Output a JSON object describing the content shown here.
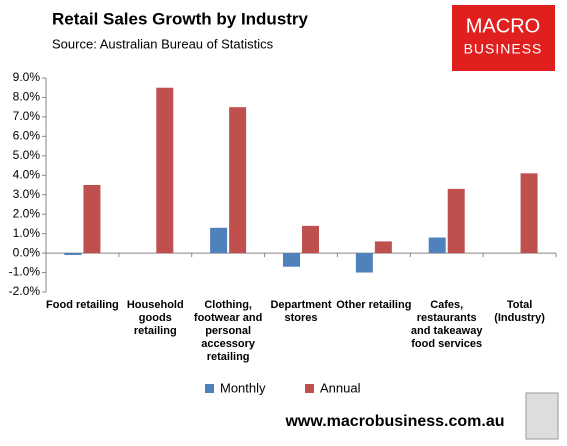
{
  "header": {
    "logo": [
      "MACRO",
      "BUSINESS"
    ],
    "footer": "www.macrobusiness.com.au"
  },
  "chart_data": {
    "type": "bar",
    "title": "Retail Sales Growth by Industry",
    "subtitle": "Source: Australian Bureau of Statistics",
    "categories": [
      "Food retailing",
      "Household goods retailing",
      "Clothing, footwear and personal accessory retailing",
      "Department stores",
      "Other retailing",
      "Cafes, restaurants and takeaway food services",
      "Total (Industry)"
    ],
    "series": [
      {
        "name": "Monthly",
        "color": "#4f81bd",
        "values": [
          -0.1,
          0.0,
          1.3,
          -0.7,
          -1.0,
          0.8,
          0.0
        ]
      },
      {
        "name": "Annual",
        "color": "#c0504d",
        "values": [
          3.5,
          8.5,
          7.5,
          1.4,
          0.6,
          3.3,
          4.1
        ]
      }
    ],
    "ylim": [
      -2,
      9
    ],
    "yticks": [
      {
        "value": -2,
        "label": "-2.0%"
      },
      {
        "value": -1,
        "label": "-1.0%"
      },
      {
        "value": 0,
        "label": "0.0%"
      },
      {
        "value": 1,
        "label": "1.0%"
      },
      {
        "value": 2,
        "label": "2.0%"
      },
      {
        "value": 3,
        "label": "3.0%"
      },
      {
        "value": 4,
        "label": "4.0%"
      },
      {
        "value": 5,
        "label": "5.0%"
      },
      {
        "value": 6,
        "label": "6.0%"
      },
      {
        "value": 7,
        "label": "7.0%"
      },
      {
        "value": 8,
        "label": "8.0%"
      },
      {
        "value": 9,
        "label": "9.0%"
      }
    ],
    "legend": "bottom"
  }
}
